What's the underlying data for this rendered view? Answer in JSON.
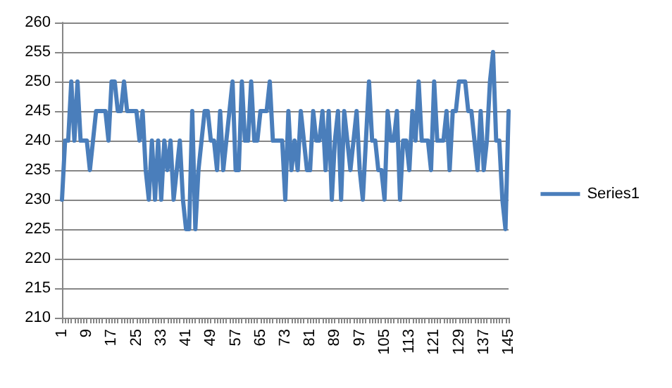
{
  "chart_data": {
    "type": "line",
    "categories": [
      "1",
      null,
      null,
      null,
      null,
      null,
      null,
      null,
      "9",
      null,
      null,
      null,
      null,
      null,
      null,
      null,
      "17",
      null,
      null,
      null,
      null,
      null,
      null,
      null,
      "25",
      null,
      null,
      null,
      null,
      null,
      null,
      null,
      "33",
      null,
      null,
      null,
      null,
      null,
      null,
      null,
      "41",
      null,
      null,
      null,
      null,
      null,
      null,
      null,
      "49",
      null,
      null,
      null,
      null,
      null,
      null,
      null,
      "57",
      null,
      null,
      null,
      null,
      null,
      null,
      null,
      "65",
      null,
      null,
      null,
      null,
      null,
      null,
      null,
      "73",
      null,
      null,
      null,
      null,
      null,
      null,
      null,
      "81",
      null,
      null,
      null,
      null,
      null,
      null,
      null,
      "89",
      null,
      null,
      null,
      null,
      null,
      null,
      null,
      "97",
      null,
      null,
      null,
      null,
      null,
      null,
      null,
      "105",
      null,
      null,
      null,
      null,
      null,
      null,
      null,
      "113",
      null,
      null,
      null,
      null,
      null,
      null,
      null,
      "121",
      null,
      null,
      null,
      null,
      null,
      null,
      null,
      "129",
      null,
      null,
      null,
      null,
      null,
      null,
      null,
      "137",
      null,
      null,
      null,
      null,
      null,
      null,
      null,
      "145"
    ],
    "series": [
      {
        "name": "Series1",
        "color": "#4a7ebb",
        "values": [
          230,
          240,
          240,
          250,
          240,
          250,
          240,
          240,
          240,
          235,
          240,
          245,
          245,
          245,
          245,
          240,
          250,
          250,
          245,
          245,
          250,
          245,
          245,
          245,
          245,
          240,
          245,
          235,
          230,
          240,
          230,
          240,
          230,
          240,
          235,
          240,
          230,
          235,
          240,
          230,
          225,
          225,
          245,
          225,
          235,
          240,
          245,
          245,
          240,
          240,
          235,
          245,
          235,
          240,
          245,
          250,
          235,
          235,
          250,
          240,
          240,
          250,
          240,
          240,
          245,
          245,
          245,
          250,
          240,
          240,
          240,
          240,
          230,
          245,
          235,
          240,
          235,
          245,
          240,
          235,
          235,
          245,
          240,
          240,
          245,
          235,
          245,
          230,
          240,
          245,
          230,
          245,
          240,
          235,
          240,
          245,
          235,
          230,
          240,
          250,
          240,
          240,
          235,
          235,
          230,
          245,
          240,
          240,
          245,
          230,
          240,
          240,
          235,
          245,
          240,
          250,
          240,
          240,
          240,
          235,
          250,
          240,
          240,
          240,
          245,
          235,
          245,
          245,
          250,
          250,
          250,
          245,
          245,
          240,
          235,
          245,
          235,
          240,
          250,
          255,
          240,
          240,
          230,
          225,
          245
        ]
      }
    ],
    "ylim": [
      210,
      260
    ],
    "yticks": [
      210,
      215,
      220,
      225,
      230,
      235,
      240,
      245,
      250,
      255,
      260
    ],
    "grid": "y",
    "legend": "right",
    "marker": "none",
    "line_style": "solid"
  }
}
